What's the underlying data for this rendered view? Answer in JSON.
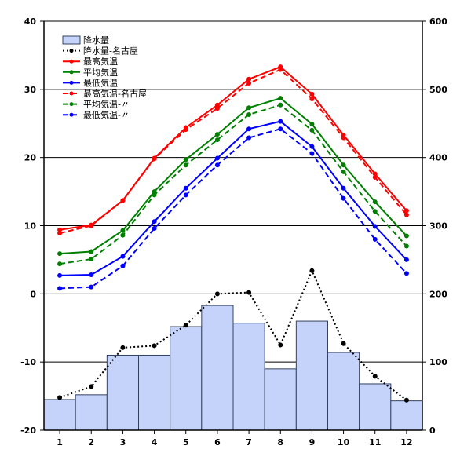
{
  "chart_data": {
    "type": "bar",
    "categories": [
      "1",
      "2",
      "3",
      "4",
      "5",
      "6",
      "7",
      "8",
      "9",
      "10",
      "11",
      "12"
    ],
    "left_axis": {
      "ylim": [
        -20,
        40
      ],
      "ticks": [
        -20,
        -10,
        0,
        10,
        20,
        30,
        40
      ]
    },
    "right_axis": {
      "ylim": [
        0,
        600
      ],
      "ticks": [
        0,
        100,
        200,
        300,
        400,
        500,
        600
      ]
    },
    "grid": {
      "horizontal": true,
      "vertical": false
    },
    "legend_position": "top-left",
    "series": [
      {
        "name": "降水量",
        "kind": "bar",
        "axis": "right",
        "color": "#c5d3fb",
        "edge": "#33415f",
        "values": [
          45,
          52,
          110,
          110,
          152,
          183,
          157,
          90,
          160,
          114,
          68,
          43
        ]
      },
      {
        "name": "降水量-名古屋",
        "kind": "line",
        "style": "dotted",
        "axis": "right",
        "color": "#000000",
        "values": [
          48,
          64,
          121,
          124,
          154,
          200,
          202,
          125,
          234,
          127,
          79,
          44
        ]
      },
      {
        "name": "最高気温",
        "kind": "line",
        "style": "solid",
        "axis": "left",
        "color": "#ff0000",
        "values": [
          9.4,
          10.1,
          13.7,
          19.9,
          24.4,
          27.7,
          31.5,
          33.3,
          29.3,
          23.3,
          17.6,
          12.2
        ]
      },
      {
        "name": "平均気温",
        "kind": "line",
        "style": "solid",
        "axis": "left",
        "color": "#008000",
        "values": [
          5.9,
          6.2,
          9.3,
          15.0,
          19.7,
          23.4,
          27.3,
          28.7,
          24.9,
          18.9,
          13.5,
          8.5
        ]
      },
      {
        "name": "最低気温",
        "kind": "line",
        "style": "solid",
        "axis": "left",
        "color": "#0000ff",
        "values": [
          2.7,
          2.8,
          5.5,
          10.6,
          15.5,
          19.9,
          24.2,
          25.3,
          21.6,
          15.5,
          9.9,
          5.0
        ]
      },
      {
        "name": "最高気温-名古屋",
        "kind": "line",
        "style": "dashed",
        "axis": "left",
        "color": "#ff0000",
        "values": [
          8.9,
          10.0,
          13.7,
          19.8,
          24.1,
          27.2,
          30.9,
          32.9,
          28.6,
          22.9,
          17.1,
          11.6
        ]
      },
      {
        "name": "平均気温-〃",
        "kind": "line",
        "style": "dashed",
        "axis": "left",
        "color": "#008000",
        "values": [
          4.4,
          5.1,
          8.6,
          14.5,
          18.9,
          22.6,
          26.3,
          27.7,
          24.0,
          17.9,
          12.1,
          7.0
        ]
      },
      {
        "name": "最低気温-〃",
        "kind": "line",
        "style": "dashed",
        "axis": "left",
        "color": "#0000ff",
        "values": [
          0.8,
          1.0,
          4.1,
          9.6,
          14.5,
          18.9,
          22.9,
          24.2,
          20.6,
          14.0,
          8.0,
          3.0
        ]
      }
    ]
  }
}
